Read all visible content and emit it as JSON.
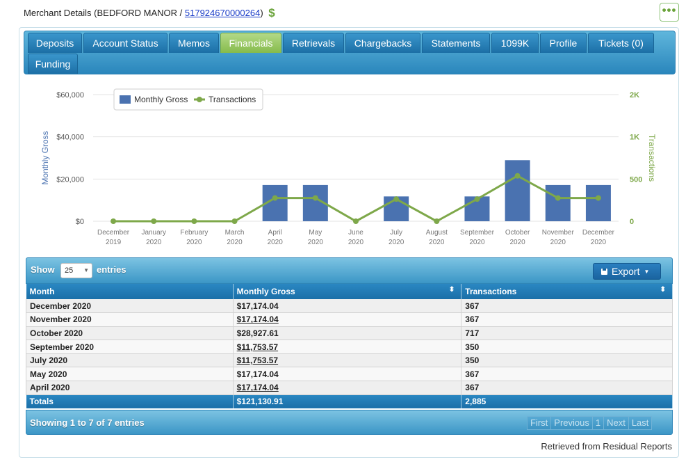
{
  "header": {
    "title_prefix": "Merchant Details (BEDFORD MANOR / ",
    "merchant_id": "517924670000264",
    "title_suffix": ")",
    "dollar": "$",
    "more": "•••"
  },
  "tabs": [
    {
      "label": "Deposits",
      "active": false
    },
    {
      "label": "Account Status",
      "active": false
    },
    {
      "label": "Memos",
      "active": false
    },
    {
      "label": "Financials",
      "active": true
    },
    {
      "label": "Retrievals",
      "active": false
    },
    {
      "label": "Chargebacks",
      "active": false
    },
    {
      "label": "Statements",
      "active": false
    },
    {
      "label": "1099K",
      "active": false
    },
    {
      "label": "Profile",
      "active": false
    },
    {
      "label": "Tickets (0)",
      "active": false
    },
    {
      "label": "Funding",
      "active": false
    }
  ],
  "chart_data": {
    "type": "bar",
    "categories": [
      "December\n2019",
      "January\n2020",
      "February\n2020",
      "March\n2020",
      "April\n2020",
      "May\n2020",
      "June\n2020",
      "July\n2020",
      "August\n2020",
      "September\n2020",
      "October\n2020",
      "November\n2020",
      "December\n2020"
    ],
    "series": [
      {
        "name": "Monthly Gross",
        "type": "bar",
        "axis": "left",
        "color": "#4a72b0",
        "values": [
          0,
          0,
          0,
          0,
          17174.04,
          17174.04,
          0,
          11753.57,
          0,
          11753.57,
          28927.61,
          17174.04,
          17174.04
        ]
      },
      {
        "name": "Transactions",
        "type": "line",
        "axis": "right",
        "color": "#7ea84a",
        "values": [
          0,
          0,
          0,
          0,
          367,
          367,
          0,
          350,
          0,
          350,
          717,
          367,
          367
        ]
      }
    ],
    "ylabel": "Monthly Gross",
    "y2label": "Transactions",
    "ylim": [
      0,
      60000
    ],
    "y2lim": [
      0,
      2000
    ],
    "yticks": [
      "$0",
      "$20,000",
      "$40,000",
      "$60,000"
    ],
    "y2ticks": [
      "0",
      "500",
      "1K",
      "2K"
    ],
    "legend_position": "top-left",
    "grid": true
  },
  "table": {
    "show_label": "Show",
    "page_length": "25",
    "entries_label": "entries",
    "export_label": "Export",
    "columns": [
      "Month",
      "Monthly Gross",
      "Transactions"
    ],
    "rows": [
      {
        "month": "December 2020",
        "gross": "$17,174.04",
        "tx": "367",
        "gross_link": false
      },
      {
        "month": "November 2020",
        "gross": "$17,174.04",
        "tx": "367",
        "gross_link": true
      },
      {
        "month": "October 2020",
        "gross": "$28,927.61",
        "tx": "717",
        "gross_link": false
      },
      {
        "month": "September 2020",
        "gross": "$11,753.57",
        "tx": "350",
        "gross_link": true
      },
      {
        "month": "July 2020",
        "gross": "$11,753.57",
        "tx": "350",
        "gross_link": true
      },
      {
        "month": "May 2020",
        "gross": "$17,174.04",
        "tx": "367",
        "gross_link": false
      },
      {
        "month": "April 2020",
        "gross": "$17,174.04",
        "tx": "367",
        "gross_link": true
      }
    ],
    "totals": {
      "label": "Totals",
      "gross": "$121,130.91",
      "tx": "2,885"
    },
    "info": "Showing 1 to 7 of 7 entries",
    "pager": [
      "First",
      "Previous",
      "1",
      "Next",
      "Last"
    ]
  },
  "footer": {
    "retrieved": "Retrieved from Residual Reports"
  },
  "colors": {
    "accent_green": "#86bb4c",
    "tab_blue": "#1c6fa6",
    "bar_blue": "#4a72b0",
    "line_green": "#7ea84a"
  }
}
